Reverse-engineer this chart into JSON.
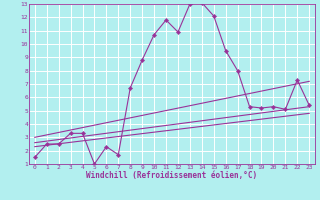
{
  "xlabel": "Windchill (Refroidissement éolien,°C)",
  "bg_color": "#b2efef",
  "grid_color": "#ffffff",
  "line_color": "#993399",
  "xlim": [
    -0.5,
    23.5
  ],
  "ylim": [
    1,
    13
  ],
  "xticks": [
    0,
    1,
    2,
    3,
    4,
    5,
    6,
    7,
    8,
    9,
    10,
    11,
    12,
    13,
    14,
    15,
    16,
    17,
    18,
    19,
    20,
    21,
    22,
    23
  ],
  "yticks": [
    1,
    2,
    3,
    4,
    5,
    6,
    7,
    8,
    9,
    10,
    11,
    12,
    13
  ],
  "main_x": [
    0,
    1,
    2,
    3,
    4,
    5,
    6,
    7,
    8,
    9,
    10,
    11,
    12,
    13,
    14,
    15,
    16,
    17,
    18,
    19,
    20,
    21,
    22,
    23
  ],
  "main_y": [
    1.5,
    2.5,
    2.5,
    3.3,
    3.3,
    1.0,
    2.3,
    1.7,
    6.7,
    8.8,
    10.7,
    11.8,
    10.9,
    13.0,
    13.1,
    12.1,
    9.5,
    8.0,
    5.3,
    5.2,
    5.3,
    5.1,
    7.3,
    5.4
  ],
  "line1_x": [
    0,
    23
  ],
  "line1_y": [
    2.3,
    4.8
  ],
  "line2_x": [
    0,
    23
  ],
  "line2_y": [
    2.6,
    5.3
  ],
  "line3_x": [
    0,
    23
  ],
  "line3_y": [
    3.0,
    7.2
  ]
}
